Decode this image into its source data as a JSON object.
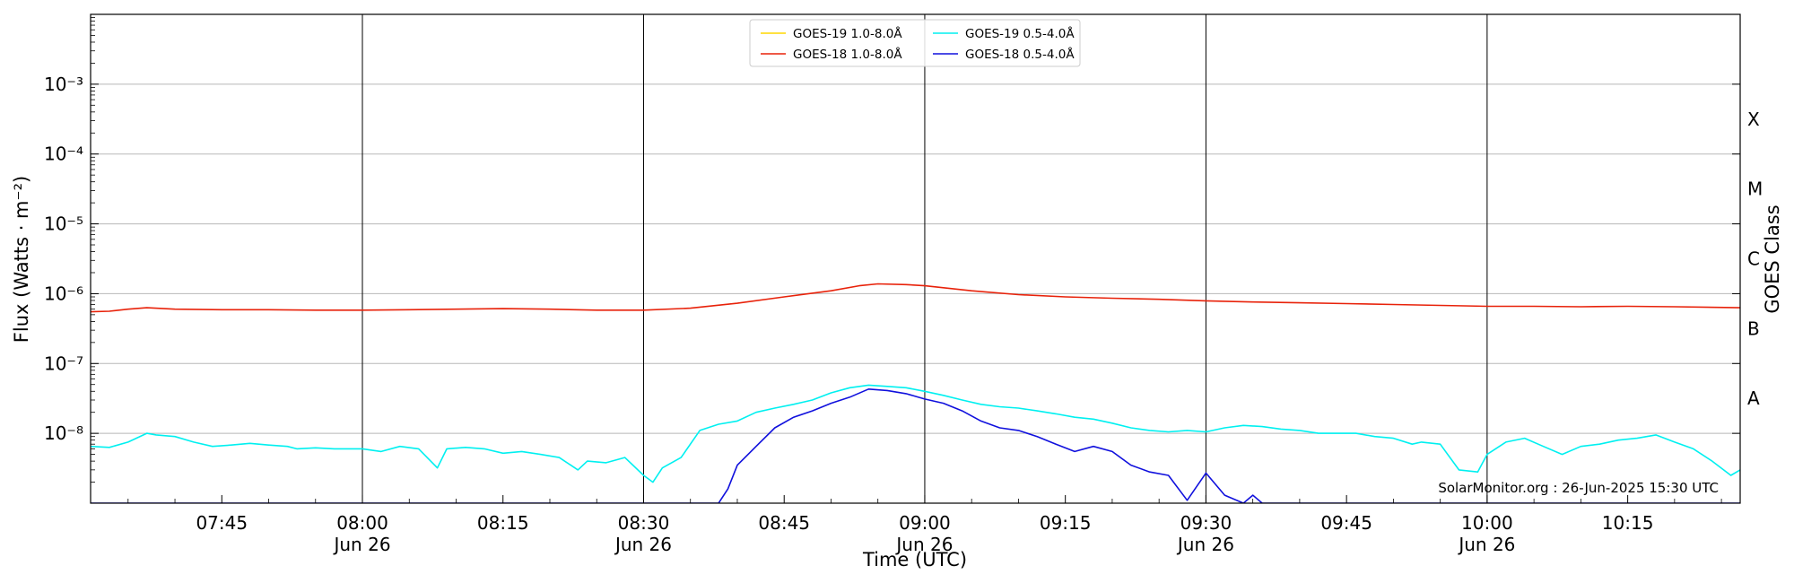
{
  "chart_data": {
    "type": "line",
    "xlabel": "Time (UTC)",
    "ylabel": "Flux (Watts · m⁻²)",
    "y2label": "GOES Class",
    "yscale": "log",
    "ylim": [
      1e-09,
      0.01
    ],
    "xlim": [
      "07:31",
      "10:27"
    ],
    "date_label": "Jun 26",
    "grid": "horizontal at decades, vertical at half-hours",
    "legend_placement": "top-center",
    "credit": "SolarMonitor.org : 26-Jun-2025 15:30 UTC",
    "x_ticks": [
      {
        "time": "07:45",
        "label": "07:45",
        "date": ""
      },
      {
        "time": "08:00",
        "label": "08:00",
        "date": "Jun 26"
      },
      {
        "time": "08:15",
        "label": "08:15",
        "date": ""
      },
      {
        "time": "08:30",
        "label": "08:30",
        "date": "Jun 26"
      },
      {
        "time": "08:45",
        "label": "08:45",
        "date": ""
      },
      {
        "time": "09:00",
        "label": "09:00",
        "date": "Jun 26"
      },
      {
        "time": "09:15",
        "label": "09:15",
        "date": ""
      },
      {
        "time": "09:30",
        "label": "09:30",
        "date": "Jun 26"
      },
      {
        "time": "09:45",
        "label": "09:45",
        "date": ""
      },
      {
        "time": "10:00",
        "label": "10:00",
        "date": "Jun 26"
      },
      {
        "time": "10:15",
        "label": "10:15",
        "date": ""
      }
    ],
    "vlines": [
      "08:00",
      "08:30",
      "09:00",
      "09:30",
      "10:00"
    ],
    "y_ticks": [
      {
        "value": 1e-08,
        "label": "10⁻⁸"
      },
      {
        "value": 1e-07,
        "label": "10⁻⁷"
      },
      {
        "value": 1e-06,
        "label": "10⁻⁶"
      },
      {
        "value": 1e-05,
        "label": "10⁻⁵"
      },
      {
        "value": 0.0001,
        "label": "10⁻⁴"
      },
      {
        "value": 0.001,
        "label": "10⁻³"
      }
    ],
    "goes_classes": [
      {
        "label": "A",
        "value": 3.16e-08
      },
      {
        "label": "B",
        "value": 3.16e-07
      },
      {
        "label": "C",
        "value": 3.16e-06
      },
      {
        "label": "M",
        "value": 3.16e-05
      },
      {
        "label": "X",
        "value": 0.000316
      }
    ],
    "series": [
      {
        "name": "GOES-19 1.0-8.0Å",
        "color": "#ffd700",
        "x": [],
        "y": []
      },
      {
        "name": "GOES-18 1.0-8.0Å",
        "color": "#e8220a",
        "x": [
          "07:31",
          "07:33",
          "07:35",
          "07:37",
          "07:40",
          "07:45",
          "07:50",
          "07:55",
          "08:00",
          "08:05",
          "08:10",
          "08:15",
          "08:20",
          "08:25",
          "08:30",
          "08:35",
          "08:40",
          "08:45",
          "08:50",
          "08:53",
          "08:55",
          "08:58",
          "09:00",
          "09:05",
          "09:10",
          "09:15",
          "09:20",
          "09:25",
          "09:30",
          "09:35",
          "09:40",
          "09:45",
          "09:50",
          "09:55",
          "10:00",
          "10:05",
          "10:10",
          "10:15",
          "10:20",
          "10:27"
        ],
        "y": [
          5.5e-07,
          5.6e-07,
          6e-07,
          6.3e-07,
          6e-07,
          5.9e-07,
          5.9e-07,
          5.8e-07,
          5.8e-07,
          5.9e-07,
          6e-07,
          6.1e-07,
          6e-07,
          5.8e-07,
          5.8e-07,
          6.2e-07,
          7.3e-07,
          9e-07,
          1.1e-06,
          1.3e-06,
          1.38e-06,
          1.35e-06,
          1.3e-06,
          1.1e-06,
          9.7e-07,
          9e-07,
          8.6e-07,
          8.3e-07,
          7.9e-07,
          7.6e-07,
          7.4e-07,
          7.2e-07,
          7e-07,
          6.8e-07,
          6.6e-07,
          6.6e-07,
          6.5e-07,
          6.6e-07,
          6.5e-07,
          6.3e-07
        ]
      },
      {
        "name": "GOES-19 0.5-4.0Å",
        "color": "#00f0f0",
        "x": [
          "07:31",
          "07:33",
          "07:35",
          "07:37",
          "07:38",
          "07:40",
          "07:42",
          "07:44",
          "07:46",
          "07:48",
          "07:50",
          "07:52",
          "07:53",
          "07:55",
          "07:57",
          "07:59",
          "08:00",
          "08:02",
          "08:04",
          "08:06",
          "08:08",
          "08:09",
          "08:11",
          "08:13",
          "08:15",
          "08:17",
          "08:19",
          "08:21",
          "08:23",
          "08:24",
          "08:26",
          "08:28",
          "08:30",
          "08:31",
          "08:32",
          "08:34",
          "08:36",
          "08:38",
          "08:40",
          "08:42",
          "08:44",
          "08:46",
          "08:48",
          "08:50",
          "08:52",
          "08:54",
          "08:56",
          "08:58",
          "09:00",
          "09:02",
          "09:04",
          "09:06",
          "09:08",
          "09:10",
          "09:12",
          "09:14",
          "09:16",
          "09:18",
          "09:20",
          "09:22",
          "09:24",
          "09:26",
          "09:28",
          "09:30",
          "09:32",
          "09:34",
          "09:36",
          "09:38",
          "09:40",
          "09:42",
          "09:44",
          "09:46",
          "09:48",
          "09:50",
          "09:52",
          "09:53",
          "09:55",
          "09:57",
          "09:59",
          "10:00",
          "10:02",
          "10:04",
          "10:06",
          "10:08",
          "10:10",
          "10:12",
          "10:14",
          "10:16",
          "10:18",
          "10:20",
          "10:22",
          "10:24",
          "10:26",
          "10:27"
        ],
        "y": [
          6.5e-09,
          6.3e-09,
          7.5e-09,
          1e-08,
          9.5e-09,
          9e-09,
          7.5e-09,
          6.5e-09,
          6.8e-09,
          7.2e-09,
          6.8e-09,
          6.5e-09,
          6e-09,
          6.2e-09,
          6e-09,
          6e-09,
          6e-09,
          5.5e-09,
          6.5e-09,
          6e-09,
          3.2e-09,
          6e-09,
          6.3e-09,
          6e-09,
          5.2e-09,
          5.5e-09,
          5e-09,
          4.5e-09,
          3e-09,
          4e-09,
          3.8e-09,
          4.5e-09,
          2.5e-09,
          2e-09,
          3.2e-09,
          4.5e-09,
          1.1e-08,
          1.35e-08,
          1.5e-08,
          2e-08,
          2.3e-08,
          2.6e-08,
          3e-08,
          3.8e-08,
          4.5e-08,
          4.9e-08,
          4.7e-08,
          4.5e-08,
          4e-08,
          3.5e-08,
          3e-08,
          2.6e-08,
          2.4e-08,
          2.3e-08,
          2.1e-08,
          1.9e-08,
          1.7e-08,
          1.6e-08,
          1.4e-08,
          1.2e-08,
          1.1e-08,
          1.05e-08,
          1.1e-08,
          1.05e-08,
          1.2e-08,
          1.3e-08,
          1.25e-08,
          1.15e-08,
          1.1e-08,
          1e-08,
          1e-08,
          1e-08,
          9e-09,
          8.5e-09,
          7e-09,
          7.5e-09,
          7e-09,
          3e-09,
          2.8e-09,
          5e-09,
          7.5e-09,
          8.5e-09,
          6.5e-09,
          5e-09,
          6.5e-09,
          7e-09,
          8e-09,
          8.5e-09,
          9.5e-09,
          7.5e-09,
          6e-09,
          4e-09,
          2.5e-09,
          3e-09
        ]
      },
      {
        "name": "GOES-18 0.5-4.0Å",
        "color": "#1010dd",
        "x": [
          "07:31",
          "08:38",
          "08:39",
          "08:40",
          "08:42",
          "08:44",
          "08:46",
          "08:48",
          "08:50",
          "08:52",
          "08:54",
          "08:56",
          "08:58",
          "09:00",
          "09:02",
          "09:04",
          "09:06",
          "09:08",
          "09:10",
          "09:12",
          "09:14",
          "09:16",
          "09:18",
          "09:20",
          "09:22",
          "09:24",
          "09:26",
          "09:28",
          "09:30",
          "09:32",
          "09:34",
          "09:35",
          "09:36",
          "09:38",
          "10:27"
        ],
        "y": [
          1e-09,
          1e-09,
          1.6e-09,
          3.5e-09,
          6.5e-09,
          1.2e-08,
          1.7e-08,
          2.1e-08,
          2.7e-08,
          3.3e-08,
          4.3e-08,
          4.1e-08,
          3.7e-08,
          3.1e-08,
          2.7e-08,
          2.1e-08,
          1.5e-08,
          1.2e-08,
          1.1e-08,
          9e-09,
          7e-09,
          5.5e-09,
          6.5e-09,
          5.5e-09,
          3.5e-09,
          2.8e-09,
          2.5e-09,
          1.1e-09,
          2.7e-09,
          1.3e-09,
          1e-09,
          1.3e-09,
          1e-09,
          1e-09,
          1e-09
        ]
      }
    ]
  }
}
